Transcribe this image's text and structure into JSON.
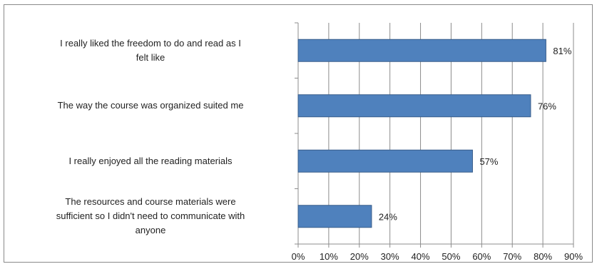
{
  "chart_data": {
    "type": "bar",
    "orientation": "horizontal",
    "categories": [
      "I really liked the freedom to do and read as I felt like",
      "The way the course was organized suited me",
      "I really enjoyed all the reading materials",
      "The resources and course materials were sufficient so I didn't need to communicate with anyone"
    ],
    "category_lines": [
      [
        "I really liked the freedom to do and read as I",
        "felt like"
      ],
      [
        "The way the course was organized suited me"
      ],
      [
        "I really enjoyed all the reading materials"
      ],
      [
        "The resources and course materials were",
        "sufficient so I didn't need to communicate with",
        "anyone"
      ]
    ],
    "values": [
      81,
      76,
      57,
      24
    ],
    "data_labels": [
      "81%",
      "76%",
      "57%",
      "24%"
    ],
    "xlim": [
      0,
      90
    ],
    "x_ticks": [
      0,
      10,
      20,
      30,
      40,
      50,
      60,
      70,
      80,
      90
    ],
    "x_tick_labels": [
      "0%",
      "10%",
      "20%",
      "30%",
      "40%",
      "50%",
      "60%",
      "70%",
      "80%",
      "90%"
    ],
    "title": "",
    "xlabel": "",
    "ylabel": "",
    "grid": true,
    "legend": "none",
    "bar_color": "#4f81bd",
    "bar_edge_color": "#385d8a",
    "grid_color": "#8c8c8c"
  }
}
